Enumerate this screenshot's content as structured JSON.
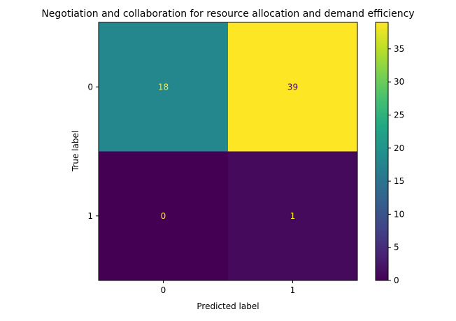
{
  "chart_data": {
    "type": "heatmap",
    "title": "Negotiation and collaboration for resource allocation and demand efficiency",
    "xlabel": "Predicted label",
    "ylabel": "True label",
    "x_categories": [
      "0",
      "1"
    ],
    "y_categories": [
      "0",
      "1"
    ],
    "values": [
      [
        18,
        39
      ],
      [
        0,
        1
      ]
    ],
    "colormap": "viridis",
    "colorbar": {
      "min": 0,
      "max": 39,
      "ticks": [
        0,
        5,
        10,
        15,
        20,
        25,
        30,
        35
      ],
      "tick_labels": [
        "0",
        "5",
        "10",
        "15",
        "20",
        "25",
        "30",
        "35"
      ]
    },
    "annotation_colors": {
      "on_dark_cells": "#fde725",
      "on_light_cells": "#440154"
    }
  }
}
